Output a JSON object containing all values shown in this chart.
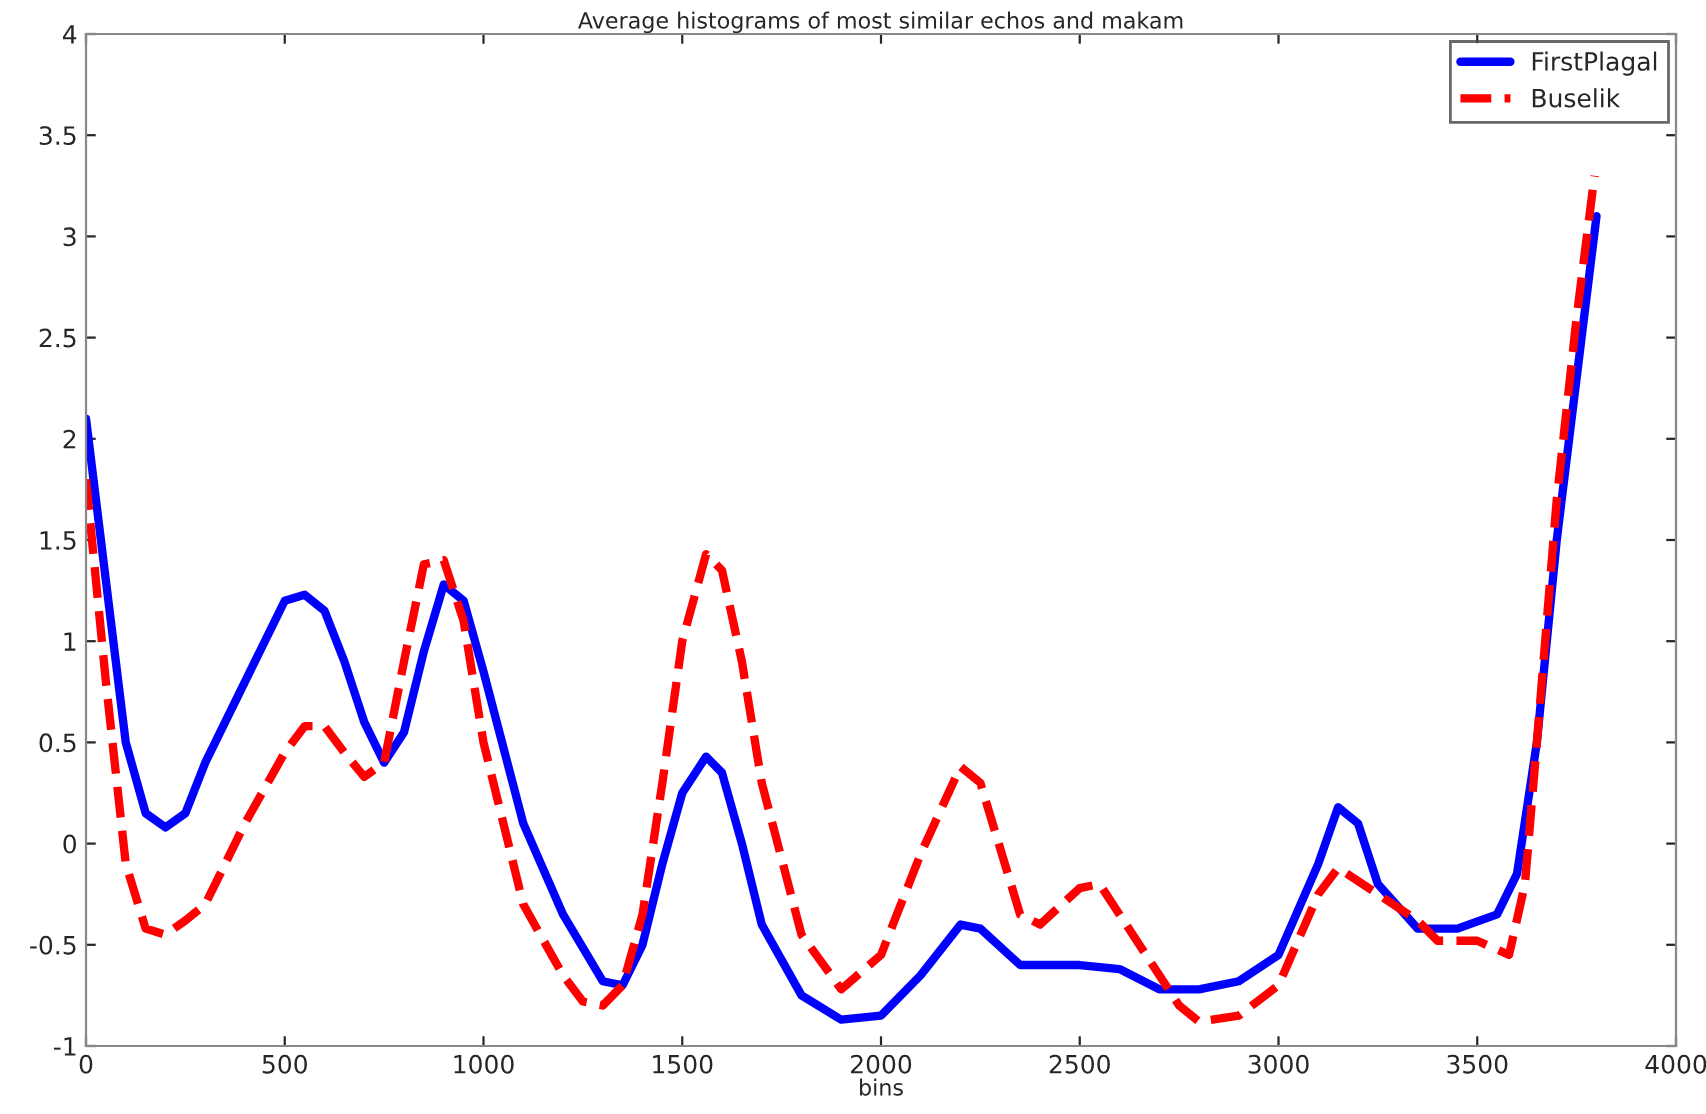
{
  "chart_data": {
    "type": "line",
    "title": "Average histograms of most similar echos and makam",
    "xlabel": "bins",
    "xlim": [
      0,
      4000
    ],
    "xticks": [
      0,
      500,
      1000,
      1500,
      2000,
      2500,
      3000,
      3500,
      4000
    ],
    "ylim": [
      -1,
      4
    ],
    "yticks": [
      -1,
      -0.5,
      0,
      0.5,
      1,
      1.5,
      2,
      2.5,
      3,
      3.5,
      4
    ],
    "grid": false,
    "legend": "top right",
    "series": [
      {
        "name": "FirstPlagal",
        "color": "#0000ff",
        "line_style": "solid",
        "x": [
          0,
          50,
          100,
          150,
          200,
          250,
          300,
          400,
          500,
          550,
          600,
          650,
          700,
          750,
          800,
          850,
          900,
          950,
          1000,
          1100,
          1200,
          1300,
          1350,
          1400,
          1450,
          1500,
          1560,
          1600,
          1650,
          1700,
          1800,
          1900,
          2000,
          2100,
          2200,
          2250,
          2350,
          2500,
          2600,
          2700,
          2800,
          2900,
          3000,
          3100,
          3150,
          3200,
          3250,
          3350,
          3450,
          3550,
          3600,
          3650,
          3700,
          3750,
          3800
        ],
        "values": [
          2.1,
          1.3,
          0.5,
          0.15,
          0.08,
          0.15,
          0.4,
          0.8,
          1.2,
          1.23,
          1.15,
          0.9,
          0.6,
          0.4,
          0.55,
          0.95,
          1.28,
          1.2,
          0.85,
          0.1,
          -0.35,
          -0.68,
          -0.7,
          -0.5,
          -0.1,
          0.25,
          0.43,
          0.35,
          0.0,
          -0.4,
          -0.75,
          -0.87,
          -0.85,
          -0.65,
          -0.4,
          -0.42,
          -0.6,
          -0.6,
          -0.62,
          -0.72,
          -0.72,
          -0.68,
          -0.55,
          -0.1,
          0.18,
          0.1,
          -0.2,
          -0.42,
          -0.42,
          -0.35,
          -0.15,
          0.5,
          1.5,
          2.3,
          3.1
        ]
      },
      {
        "name": "Buselik",
        "color": "#ff0000",
        "line_style": "dashed",
        "x": [
          0,
          50,
          100,
          150,
          200,
          250,
          300,
          350,
          400,
          500,
          550,
          600,
          650,
          700,
          750,
          800,
          850,
          900,
          950,
          1000,
          1100,
          1200,
          1250,
          1300,
          1350,
          1400,
          1450,
          1500,
          1560,
          1600,
          1650,
          1700,
          1800,
          1900,
          2000,
          2100,
          2200,
          2250,
          2350,
          2400,
          2500,
          2550,
          2650,
          2750,
          2800,
          2900,
          3000,
          3100,
          3150,
          3250,
          3350,
          3400,
          3500,
          3580,
          3620,
          3650,
          3700,
          3750,
          3795
        ],
        "values": [
          1.8,
          0.8,
          -0.1,
          -0.42,
          -0.45,
          -0.38,
          -0.3,
          -0.1,
          0.1,
          0.45,
          0.58,
          0.58,
          0.45,
          0.33,
          0.4,
          0.9,
          1.38,
          1.4,
          1.1,
          0.5,
          -0.3,
          -0.65,
          -0.78,
          -0.8,
          -0.7,
          -0.35,
          0.3,
          1.0,
          1.43,
          1.35,
          0.9,
          0.3,
          -0.45,
          -0.72,
          -0.55,
          -0.05,
          0.38,
          0.3,
          -0.35,
          -0.4,
          -0.22,
          -0.2,
          -0.5,
          -0.8,
          -0.88,
          -0.85,
          -0.7,
          -0.25,
          -0.12,
          -0.25,
          -0.38,
          -0.48,
          -0.48,
          -0.55,
          -0.2,
          0.5,
          1.7,
          2.6,
          3.3
        ]
      }
    ]
  }
}
